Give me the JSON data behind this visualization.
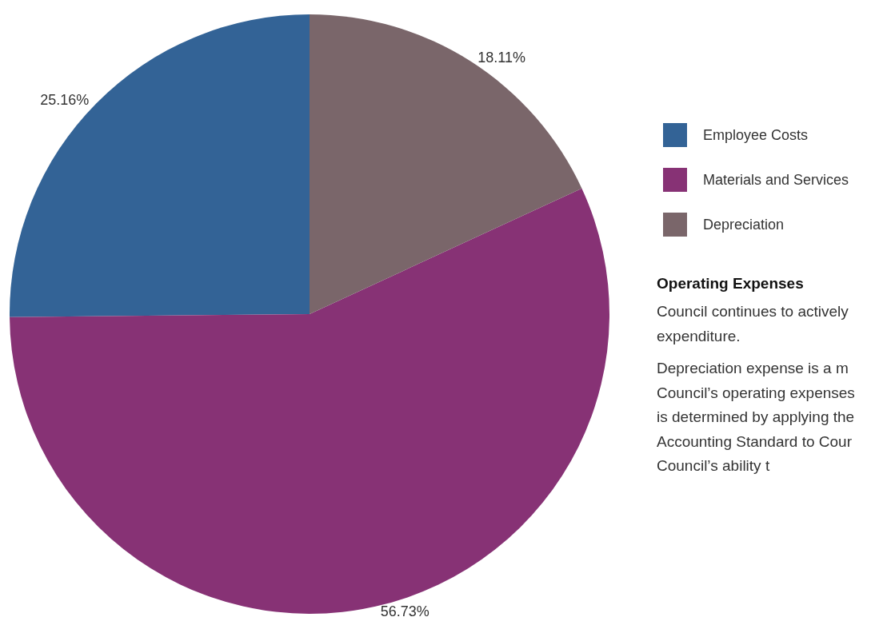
{
  "chart_data": {
    "type": "pie",
    "categories": [
      "Employee Costs",
      "Materials and Services",
      "Depreciation"
    ],
    "values": [
      25.16,
      56.73,
      18.11
    ],
    "colors": [
      "#336396",
      "#873275",
      "#7a666a"
    ],
    "value_labels": [
      "25.16%",
      "56.73%",
      "18.11%"
    ],
    "legend": "right",
    "annotations": [
      "Operating Expenses",
      "Council continues to actively",
      "expenditure.",
      "Depreciation expense is a m",
      "Council’s operating expenses",
      "is determined by applying the",
      "Accounting Standard to Cour",
      "Council’s ability t"
    ]
  }
}
